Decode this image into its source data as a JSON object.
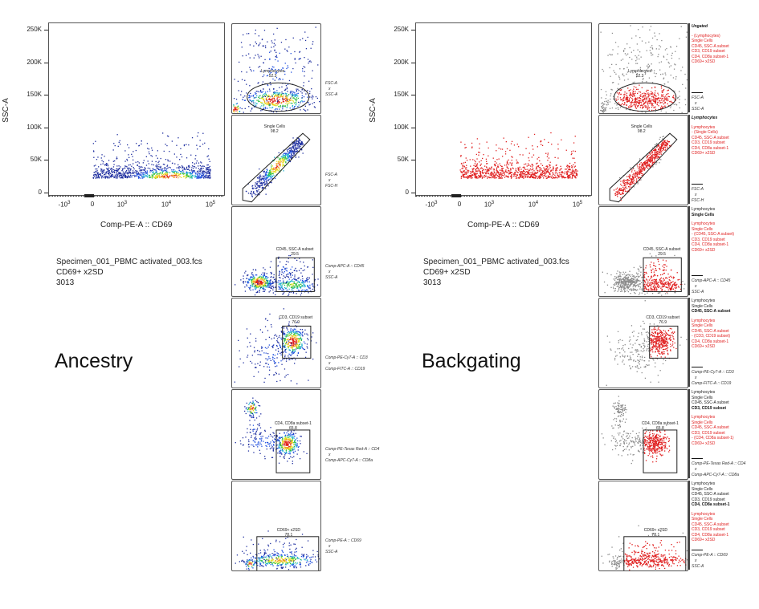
{
  "left_section": {
    "caption": "Ancestry",
    "mode": "density"
  },
  "right_section": {
    "caption": "Backgating",
    "mode": "backgate"
  },
  "colors": {
    "gated_highlight": "#e02020",
    "ungated_events": "#8a8a8a",
    "density_low": "#1f2fa0",
    "density_high": "#e0201a"
  },
  "info": {
    "file": "Specimen_001_PBMC activated_003.fcs",
    "population": "CD69+ x2SD",
    "count": "3013"
  },
  "chart_data": {
    "type": "scatter",
    "title": "",
    "xlabel": "Comp-PE-A :: CD69",
    "ylabel": "SSC-A",
    "x_scale": "biexponential",
    "xticks": [
      "-10^3",
      "0",
      "10^3",
      "10^4",
      "10^5"
    ],
    "yticks": [
      "0",
      "50K",
      "100K",
      "150K",
      "200K",
      "250K"
    ],
    "ylim": [
      0,
      262144
    ],
    "gates": [
      {
        "name": "Lymphocytes",
        "percent": "52.3",
        "shape": "ellipse",
        "x_axis": "FSC-A",
        "y_axis": "SSC-A"
      },
      {
        "name": "Single Cells",
        "percent": "98.2",
        "shape": "polygon",
        "x_axis": "FSC-A",
        "y_axis": "FSC-H"
      },
      {
        "name": "CD45, SSC-A subset",
        "percent": "29.5",
        "shape": "rectangle",
        "x_axis": "Comp-APC-A :: CD45",
        "y_axis": "SSC-A"
      },
      {
        "name": "CD3, CD19 subset",
        "percent": "76.9",
        "shape": "rectangle",
        "x_axis": "Comp-PE-Cy7-A :: CD3",
        "y_axis": "Comp-FITC-A :: CD19"
      },
      {
        "name": "CD4, CD8a subset-1",
        "percent": "65.8",
        "shape": "rectangle",
        "x_axis": "Comp-PE-Texas Red-A :: CD4",
        "y_axis": "Comp-APC-Cy7-A :: CD8a"
      },
      {
        "name": "CD69+ x2SD",
        "percent": "78.1",
        "shape": "rectangle",
        "x_axis": "Comp-PE-A :: CD69",
        "y_axis": "SSC-A"
      }
    ]
  },
  "axes_separator": "x",
  "hierarchy": [
    [
      {
        "t": "Ungated",
        "s": "bold-italic"
      },
      {
        "t": "",
        "s": "gap"
      },
      {
        "t": "- (Lymphocytes)",
        "s": "red"
      },
      {
        "t": "Single Cells",
        "s": "red"
      },
      {
        "t": "CD45, SSC-A subset",
        "s": "red"
      },
      {
        "t": "CD3, CD19 subset",
        "s": "red"
      },
      {
        "t": "CD4, CD8a subset-1",
        "s": "red"
      },
      {
        "t": "CD69+ x2SD",
        "s": "red"
      }
    ],
    [
      {
        "t": "Lymphocytes",
        "s": "bold-italic"
      },
      {
        "t": "",
        "s": "gap"
      },
      {
        "t": "Lymphocytes",
        "s": "red"
      },
      {
        "t": "- (Single Cells)",
        "s": "red"
      },
      {
        "t": "CD45, SSC-A subset",
        "s": "red"
      },
      {
        "t": "CD3, CD19 subset",
        "s": "red"
      },
      {
        "t": "CD4, CD8a subset-1",
        "s": "red"
      },
      {
        "t": "CD69+ x2SD",
        "s": "red"
      }
    ],
    [
      {
        "t": "Lymphocytes",
        "s": "black"
      },
      {
        "t": "Single Cells",
        "s": "bold"
      },
      {
        "t": "",
        "s": "gap"
      },
      {
        "t": "Lymphocytes",
        "s": "red"
      },
      {
        "t": "Single Cells",
        "s": "red"
      },
      {
        "t": "- (CD45, SSC-A subset)",
        "s": "red"
      },
      {
        "t": "CD3, CD19 subset",
        "s": "red"
      },
      {
        "t": "CD4, CD8a subset-1",
        "s": "red"
      },
      {
        "t": "CD69+ x2SD",
        "s": "red"
      }
    ],
    [
      {
        "t": "Lymphocytes",
        "s": "black"
      },
      {
        "t": "Single Cells",
        "s": "black"
      },
      {
        "t": "CD45, SSC-A subset",
        "s": "bold"
      },
      {
        "t": "",
        "s": "gap"
      },
      {
        "t": "Lymphocytes",
        "s": "red"
      },
      {
        "t": "Single Cells",
        "s": "red"
      },
      {
        "t": "CD45, SSC-A subset",
        "s": "red"
      },
      {
        "t": "- (CD3, CD19 subset)",
        "s": "red"
      },
      {
        "t": "CD4, CD8a subset-1",
        "s": "red"
      },
      {
        "t": "CD69+ x2SD",
        "s": "red"
      }
    ],
    [
      {
        "t": "Lymphocytes",
        "s": "black"
      },
      {
        "t": "Single Cells",
        "s": "black"
      },
      {
        "t": "CD45, SSC-A subset",
        "s": "black"
      },
      {
        "t": "CD3, CD19 subset",
        "s": "bold"
      },
      {
        "t": "",
        "s": "gap"
      },
      {
        "t": "Lymphocytes",
        "s": "red"
      },
      {
        "t": "Single Cells",
        "s": "red"
      },
      {
        "t": "CD45, SSC-A subset",
        "s": "red"
      },
      {
        "t": "CD3, CD19 subset",
        "s": "red"
      },
      {
        "t": "- (CD4, CD8a subset-1)",
        "s": "red"
      },
      {
        "t": "CD69+ x2SD",
        "s": "red"
      }
    ],
    [
      {
        "t": "Lymphocytes",
        "s": "black"
      },
      {
        "t": "Single Cells",
        "s": "black"
      },
      {
        "t": "CD45, SSC-A subset",
        "s": "black"
      },
      {
        "t": "CD3, CD19 subset",
        "s": "black"
      },
      {
        "t": "CD4, CD8a subset-1",
        "s": "bold"
      },
      {
        "t": "",
        "s": "gap"
      },
      {
        "t": "Lymphocytes",
        "s": "red"
      },
      {
        "t": "Single Cells",
        "s": "red"
      },
      {
        "t": "CD45, SSC-A subset",
        "s": "red"
      },
      {
        "t": "CD3, CD19 subset",
        "s": "red"
      },
      {
        "t": "CD4, CD8a subset-1",
        "s": "red"
      },
      {
        "t": "CD69+ x2SD",
        "s": "red"
      }
    ]
  ]
}
